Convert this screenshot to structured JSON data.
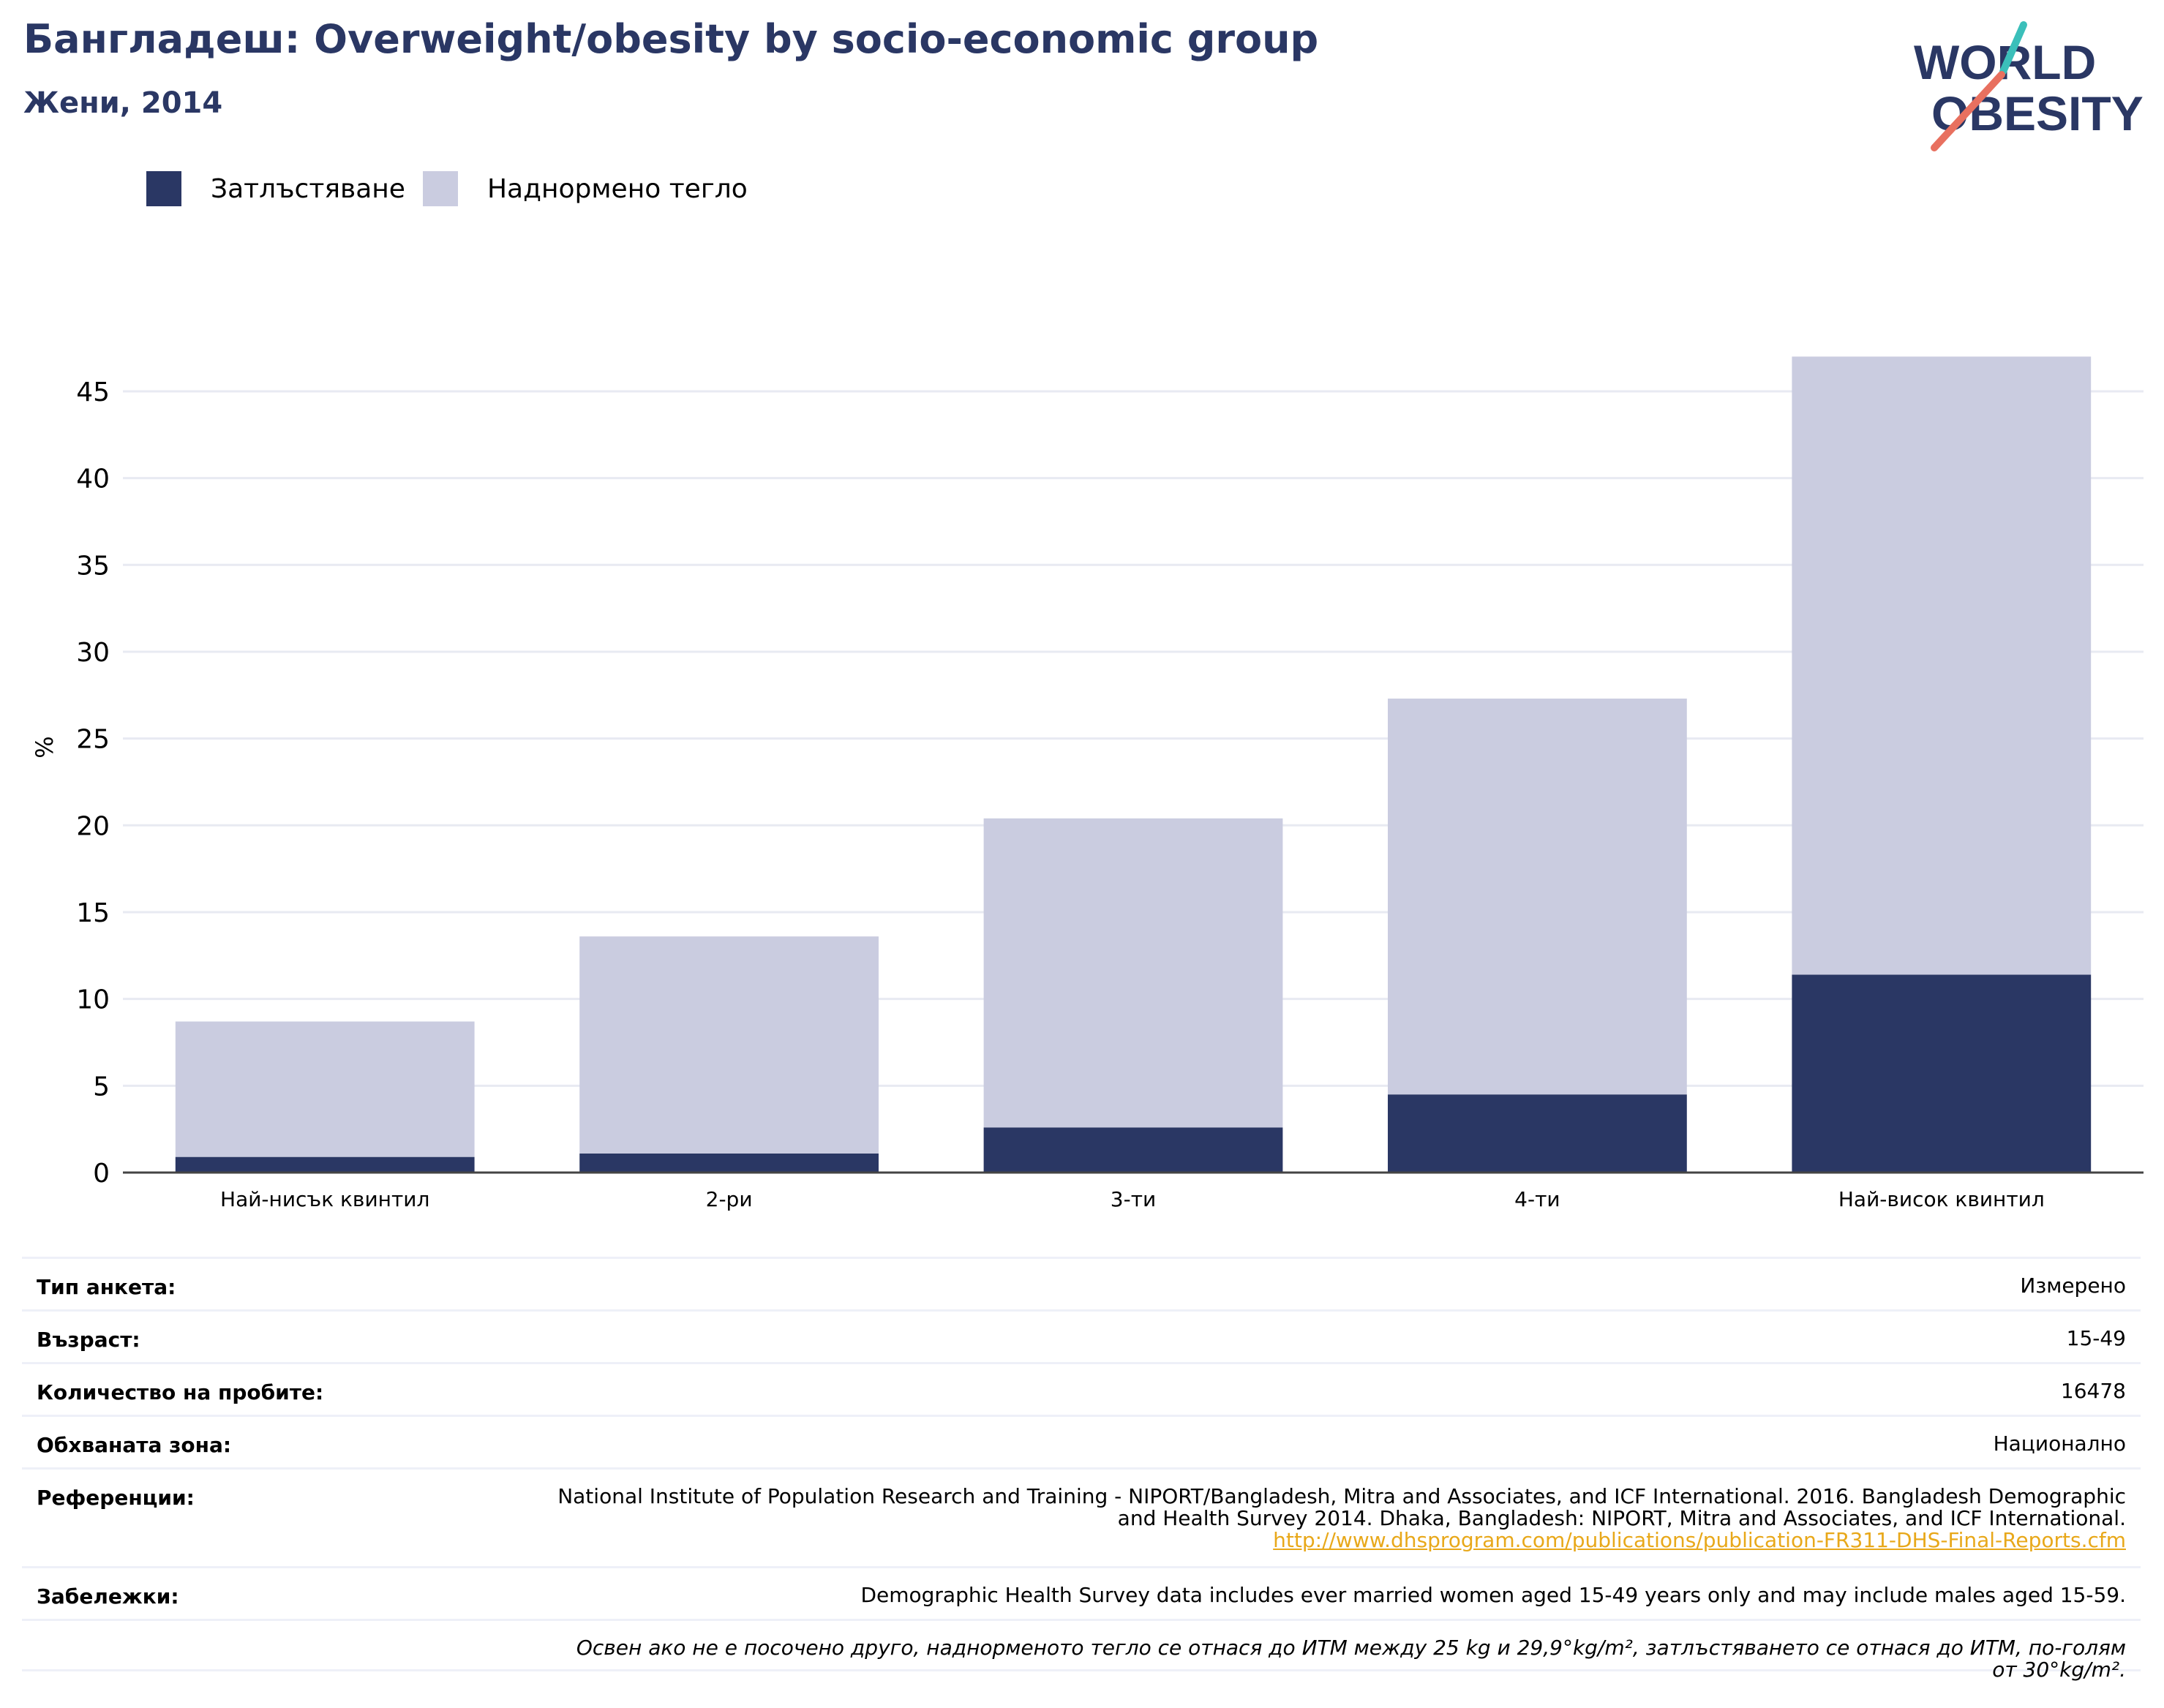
{
  "header": {
    "title": "Бангладеш: Overweight/obesity by socio-economic group",
    "subtitle": "Жени, 2014"
  },
  "logo": {
    "line1": "WORLD",
    "line2": "OBESITY"
  },
  "colors": {
    "obesity": "#2a3764",
    "overweight": "#cacce0",
    "accent_teal": "#3bbfba",
    "accent_red": "#e8705f"
  },
  "chart_data": {
    "type": "bar",
    "stacked": true,
    "categories": [
      "Най-нисък квинтил",
      "2-ри",
      "3-ти",
      "4-ти",
      "Най-висок квинтил"
    ],
    "series": [
      {
        "name": "Затлъстяване",
        "values": [
          0.9,
          1.1,
          2.6,
          4.5,
          11.4
        ]
      },
      {
        "name": "Наднормено тегло",
        "values": [
          7.8,
          12.5,
          17.8,
          22.8,
          35.6
        ]
      }
    ],
    "ylabel": "%",
    "ylim": [
      0,
      49
    ],
    "yticks": [
      0,
      5,
      10,
      15,
      20,
      25,
      30,
      35,
      40,
      45
    ],
    "grid": true,
    "legend": "top-left"
  },
  "info": {
    "survey_type": {
      "label": "Тип анкета:",
      "value": "Измерено"
    },
    "age": {
      "label": "Възраст:",
      "value": "15-49"
    },
    "sample_size": {
      "label": "Количество на пробите:",
      "value": "16478"
    },
    "area": {
      "label": "Обхваната зона:",
      "value": "Национално"
    },
    "references": {
      "label": "Референции:",
      "value": "National Institute of Population Research and Training - NIPORT/Bangladesh, Mitra and Associates, and ICF International. 2016. Bangladesh Demographic and Health Survey 2014. Dhaka, Bangladesh: NIPORT, Mitra and Associates, and ICF International.",
      "link": "http://www.dhsprogram.com/publications/publication-FR311-DHS-Final-Reports.cfm"
    },
    "notes": {
      "label": "Забележки:",
      "value": "Demographic Health Survey data includes ever married women aged 15-49 years only and may include males aged 15-59."
    },
    "definition": "Освен ако не е посочено друго, наднорменото тегло се отнася до ИТМ между 25 kg и 29,9°kg/m², затлъстяването се отнася до ИТМ, по-голям от 30°kg/m²."
  }
}
